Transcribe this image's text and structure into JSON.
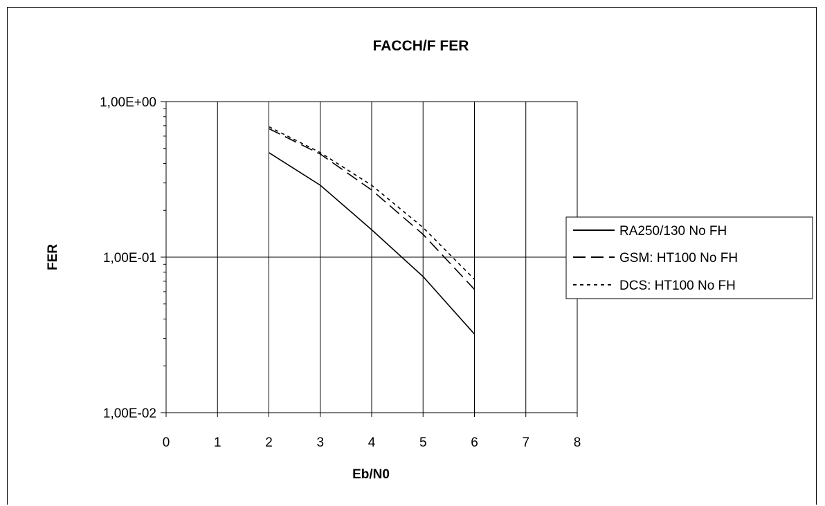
{
  "chart_data": {
    "type": "line",
    "title": "FACCH/F  FER",
    "xlabel": "Eb/N0",
    "ylabel": "FER",
    "xlim": [
      0,
      8
    ],
    "ylim": [
      0.01,
      1
    ],
    "yscale": "log",
    "x_ticks": [
      "0",
      "1",
      "2",
      "3",
      "4",
      "5",
      "6",
      "7",
      "8"
    ],
    "y_ticks": [
      {
        "value": 1,
        "label": "1,00E+00"
      },
      {
        "value": 0.1,
        "label": "1,00E-01"
      },
      {
        "value": 0.01,
        "label": "1,00E-02"
      }
    ],
    "grid": "vertical gridlines at integer x, horizontal gridline at each decade",
    "legend_position": "right",
    "series": [
      {
        "name": "RA250/130  No FH",
        "style": "solid",
        "color": "#000000",
        "x": [
          2,
          3,
          4,
          5,
          6
        ],
        "y": [
          0.47,
          0.29,
          0.15,
          0.075,
          0.032
        ]
      },
      {
        "name": "GSM:  HT100  No FH",
        "style": "dashed",
        "color": "#000000",
        "x": [
          2,
          3,
          4,
          5,
          6
        ],
        "y": [
          0.67,
          0.46,
          0.27,
          0.14,
          0.062
        ]
      },
      {
        "name": "DCS:  HT100 No FH",
        "style": "dotted",
        "color": "#000000",
        "x": [
          2,
          3,
          4,
          5,
          6
        ],
        "y": [
          0.69,
          0.47,
          0.29,
          0.155,
          0.072
        ]
      }
    ]
  }
}
